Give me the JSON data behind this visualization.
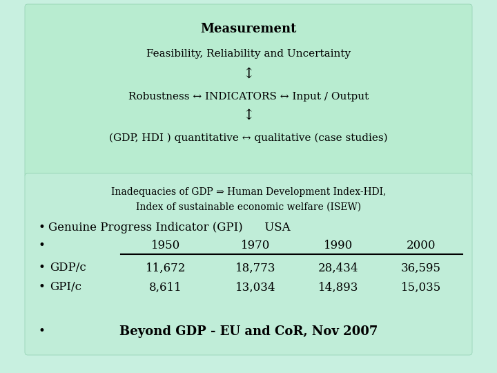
{
  "bg_color": "#c8f0e0",
  "top_box_color": "#b0e8cc",
  "bottom_box_color": "#c0edd8",
  "title_text": "Measurement",
  "line2": "Feasibility, Reliability and Uncertainty",
  "arrow_v1": "↕",
  "line3": "Robustness ↔ INDICATORS ↔ Input / Output",
  "arrow_v2": "↕",
  "line4": "(GDP, HDI ) quantitative ↔ qualitative (case studies)",
  "box2_line1": "Inadequacies of GDP ⇒ Human Development Index-HDI,",
  "box2_line2": "Index of sustainable economic welfare (ISEW)",
  "bullet1_dot": "•",
  "bullet1_text": "Genuine Progress Indicator (GPI)      USA",
  "bullet2_dot": "•",
  "bullet2_cols": [
    "1950",
    "1970",
    "1990",
    "2000"
  ],
  "bullet3_dot": "•",
  "bullet3_label": "GDP/c",
  "bullet3_cols": [
    "11,672",
    "18,773",
    "28,434",
    "36,595"
  ],
  "bullet4_dot": "•",
  "bullet4_label": "GPI/c",
  "bullet4_cols": [
    "8,611",
    "13,034",
    "14,893",
    "15,035"
  ],
  "bullet5_dot": "•",
  "bullet5_bold": "Beyond GDP - EU and CoR, Nov 2007",
  "font_size_title": 13,
  "font_size_body": 11,
  "font_size_table": 11
}
